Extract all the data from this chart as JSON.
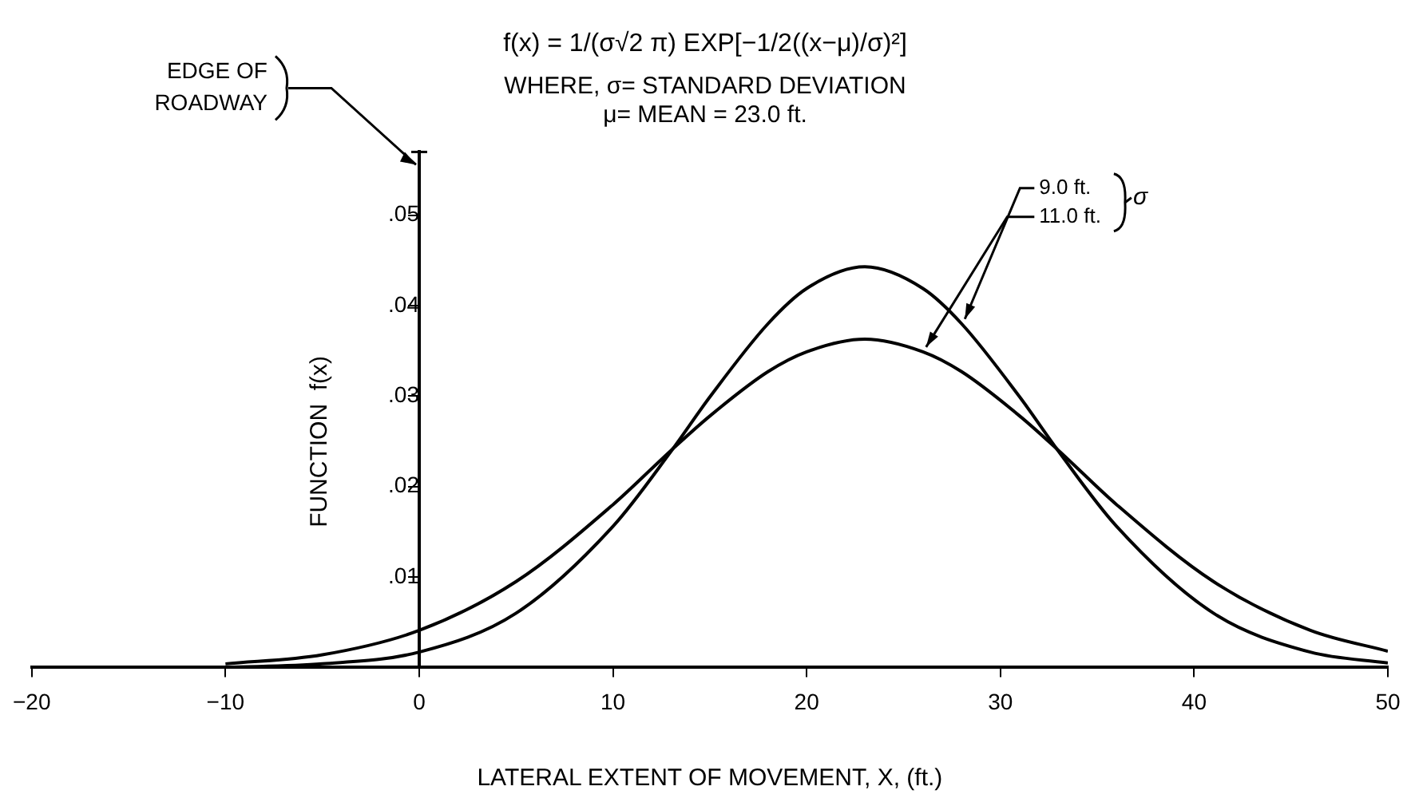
{
  "chart_data": {
    "type": "line",
    "title": "f(x) = 1/(σ√2 π) EXP[−1/2((x−μ)/σ)²]",
    "subtitle": "WHERE, σ= STANDARD DEVIATION\nμ= MEAN = 23.0 ft.",
    "xlabel": "LATERAL EXTENT OF MOVEMENT, X, (ft.)",
    "ylabel": "FUNCTION  f(x)",
    "legend_title": "σ",
    "annotations": [
      "EDGE OF ROADWAY"
    ],
    "x": [
      -10,
      -5,
      0,
      5,
      10,
      13,
      15,
      18,
      20,
      23,
      26,
      28,
      31,
      33,
      36,
      41,
      46,
      50
    ],
    "series": [
      {
        "name": "9.0 ft.",
        "color": "#000000",
        "values": [
          0,
          0.0004,
          0.0017,
          0.006,
          0.0156,
          0.0239,
          0.0299,
          0.038,
          0.0419,
          0.0443,
          0.0419,
          0.038,
          0.0299,
          0.0239,
          0.0156,
          0.006,
          0.0017,
          0.0005
        ]
      },
      {
        "name": "11.0 ft.",
        "color": "#000000",
        "values": [
          0.0004,
          0.0014,
          0.0041,
          0.0095,
          0.018,
          0.024,
          0.0278,
          0.0327,
          0.0349,
          0.0363,
          0.0349,
          0.0327,
          0.0278,
          0.024,
          0.018,
          0.0095,
          0.0041,
          0.0018
        ]
      }
    ],
    "xlim": [
      -20,
      50
    ],
    "xticks": [
      -20,
      -10,
      0,
      10,
      20,
      30,
      40,
      50
    ],
    "ylim": [
      0,
      0.057
    ],
    "yticks": [
      {
        "value": 0.01,
        "label": ".01"
      },
      {
        "value": 0.02,
        "label": ".02"
      },
      {
        "value": 0.03,
        "label": ".03"
      },
      {
        "value": 0.04,
        "label": ".04"
      },
      {
        "value": 0.05,
        "label": ".05"
      }
    ],
    "grid": false,
    "legend": "top right",
    "marker": "none",
    "line_style": "solid"
  }
}
